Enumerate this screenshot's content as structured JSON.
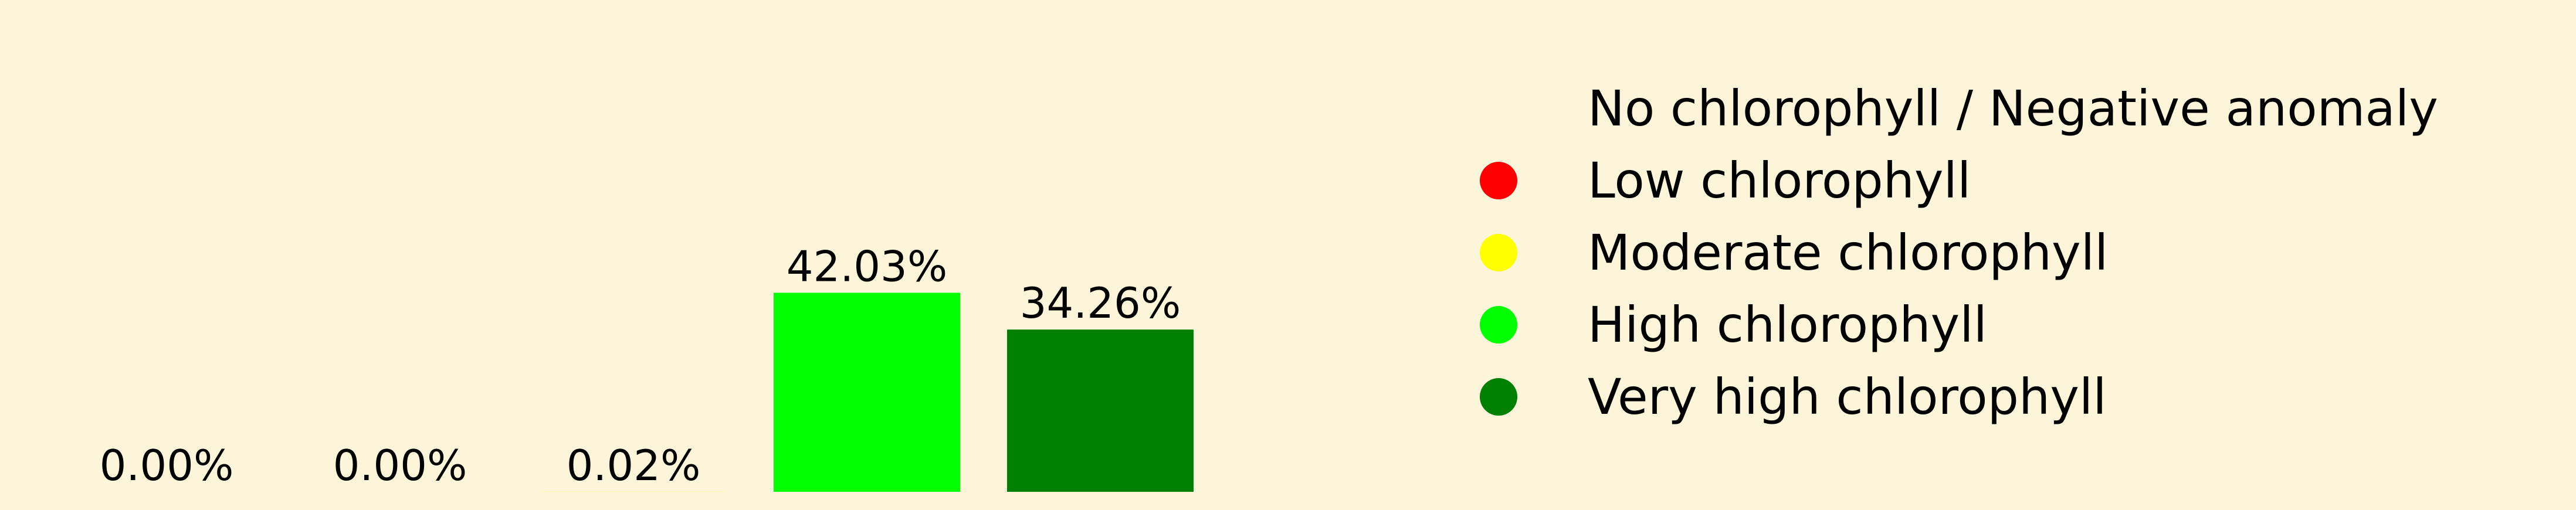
{
  "chart_data": {
    "type": "bar",
    "categories": [
      "No chlorophyll / Negative anomaly",
      "Low chlorophyll",
      "Moderate chlorophyll",
      "High chlorophyll",
      "Very high chlorophyll"
    ],
    "values": [
      0.0,
      0.0,
      0.02,
      42.03,
      34.26
    ],
    "data_labels": [
      "0.00%",
      "0.00%",
      "0.02%",
      "42.03%",
      "34.26%"
    ],
    "unit": "%",
    "colors": [
      "#fdf5d9",
      "#ff0000",
      "#ffff00",
      "#00ff00",
      "#008000"
    ],
    "legend": {
      "position": "right",
      "entries": [
        {
          "label": "No chlorophyll / Negative anomaly",
          "color": "#fdf5d9"
        },
        {
          "label": "Low chlorophyll",
          "color": "#ff0000"
        },
        {
          "label": "Moderate chlorophyll",
          "color": "#ffff00"
        },
        {
          "label": "High chlorophyll",
          "color": "#00ff00"
        },
        {
          "label": "Very high chlorophyll",
          "color": "#008000"
        }
      ]
    },
    "title": "",
    "xlabel": "",
    "ylabel": "",
    "axes_visible": false,
    "grid": false,
    "background": "#fdf5d9"
  }
}
